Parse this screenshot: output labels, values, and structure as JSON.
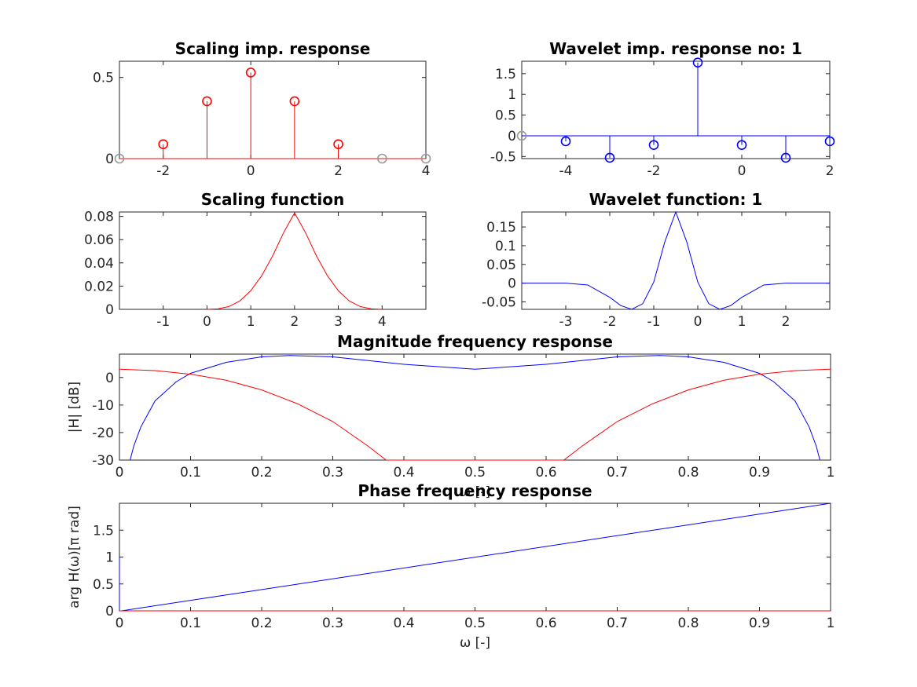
{
  "chart_data": [
    {
      "type": "stem",
      "title": "Scaling imp. response",
      "xlim": [
        -3,
        4
      ],
      "ylim": [
        0,
        0.6
      ],
      "xticks": [
        "-2",
        "0",
        "2",
        "4"
      ],
      "yticks": [
        "0",
        "0.5"
      ],
      "series": [
        {
          "color": "#ff0000",
          "x": [
            -2,
            -1,
            0,
            1,
            2
          ],
          "values": [
            0.0884,
            0.3536,
            0.5303,
            0.3536,
            0.0884
          ]
        },
        {
          "color": "#999999",
          "x": [
            -3,
            3,
            4
          ],
          "values": [
            0,
            0,
            0
          ]
        }
      ]
    },
    {
      "type": "stem",
      "title": "Wavelet imp. response no: 1",
      "xlim": [
        -5,
        2
      ],
      "ylim": [
        -0.55,
        1.8
      ],
      "xticks": [
        "-4",
        "-2",
        "0",
        "2"
      ],
      "yticks": [
        "-0.5",
        "0",
        "0.5",
        "1",
        "1.5"
      ],
      "series": [
        {
          "color": "#0000ff",
          "x": [
            -4,
            -3,
            -2,
            -1,
            0,
            1,
            2
          ],
          "values": [
            -0.1326,
            -0.5303,
            -0.221,
            1.7678,
            -0.221,
            -0.5303,
            -0.1326
          ]
        },
        {
          "color": "#999999",
          "x": [
            -5
          ],
          "values": [
            0
          ]
        }
      ]
    },
    {
      "type": "line",
      "title": "Scaling function",
      "xlim": [
        -2,
        5
      ],
      "ylim": [
        0,
        0.0838
      ],
      "xticks": [
        "-1",
        "0",
        "1",
        "2",
        "3",
        "4"
      ],
      "yticks": [
        "0",
        "0.02",
        "0.04",
        "0.06",
        "0.08"
      ],
      "series": [
        {
          "color": "#ff0000",
          "x": [
            0,
            0.25,
            0.5,
            0.75,
            1,
            1.25,
            1.5,
            1.75,
            2,
            2.25,
            2.5,
            2.75,
            3,
            3.25,
            3.5,
            3.75,
            4
          ],
          "values": [
            0,
            0.0004,
            0.0024,
            0.0072,
            0.016,
            0.029,
            0.046,
            0.066,
            0.083,
            0.066,
            0.046,
            0.029,
            0.016,
            0.0072,
            0.0024,
            0.0004,
            0
          ]
        }
      ]
    },
    {
      "type": "line",
      "title": "Wavelet function: 1",
      "xlim": [
        -4,
        3
      ],
      "ylim": [
        -0.07,
        0.19
      ],
      "xticks": [
        "-3",
        "-2",
        "-1",
        "0",
        "1",
        "2"
      ],
      "yticks": [
        "-0.05",
        "0",
        "0.05",
        "0.1",
        "0.15"
      ],
      "series": [
        {
          "color": "#0000ff",
          "x": [
            -4,
            -3,
            -2.5,
            -2,
            -1.75,
            -1.5,
            -1.25,
            -1,
            -0.75,
            -0.5,
            -0.25,
            0,
            0.25,
            0.5,
            0.75,
            1,
            1.5,
            2,
            3
          ],
          "values": [
            0,
            0,
            -0.005,
            -0.038,
            -0.06,
            -0.07,
            -0.055,
            0.003,
            0.11,
            0.19,
            0.11,
            0.003,
            -0.055,
            -0.07,
            -0.06,
            -0.038,
            -0.005,
            0,
            0
          ]
        }
      ]
    },
    {
      "type": "line",
      "title": "Magnitude frequency response",
      "xlabel": "ω [-]",
      "ylabel": "|H| [dB]",
      "xlim": [
        0,
        1
      ],
      "ylim": [
        -30,
        8.5
      ],
      "xticks": [
        "0",
        "0.1",
        "0.2",
        "0.3",
        "0.4",
        "0.5",
        "0.6",
        "0.7",
        "0.8",
        "0.9",
        "1"
      ],
      "yticks": [
        "-30",
        "-20",
        "-10",
        "0"
      ],
      "series": [
        {
          "color": "#0000ff",
          "x": [
            0.015,
            0.02,
            0.03,
            0.05,
            0.08,
            0.1,
            0.15,
            0.2,
            0.24,
            0.3,
            0.4,
            0.5,
            0.6,
            0.7,
            0.76,
            0.8,
            0.85,
            0.9,
            0.92,
            0.95,
            0.97,
            0.98,
            0.985
          ],
          "values": [
            -30,
            -25,
            -18,
            -8.5,
            -1.5,
            1.5,
            5.5,
            7.5,
            8,
            7.5,
            4.8,
            3,
            4.8,
            7.5,
            8,
            7.5,
            5.5,
            1.5,
            -1.5,
            -8.5,
            -18,
            -25,
            -30
          ]
        },
        {
          "color": "#ff0000",
          "x": [
            0,
            0.05,
            0.1,
            0.15,
            0.2,
            0.25,
            0.3,
            0.35,
            0.375,
            0.625,
            0.65,
            0.7,
            0.75,
            0.8,
            0.85,
            0.9,
            0.95,
            1
          ],
          "values": [
            3,
            2.5,
            1.2,
            -1,
            -4.5,
            -9.5,
            -16,
            -25,
            -30,
            -30,
            -25,
            -16,
            -9.5,
            -4.5,
            -1,
            1.2,
            2.5,
            3
          ]
        }
      ]
    },
    {
      "type": "line",
      "title": "Phase frequency response",
      "xlabel": "ω [-]",
      "ylabel": "arg H(ω)[π rad]",
      "xlim": [
        0,
        1
      ],
      "ylim": [
        0,
        2
      ],
      "xticks": [
        "0",
        "0.1",
        "0.2",
        "0.3",
        "0.4",
        "0.5",
        "0.6",
        "0.7",
        "0.8",
        "0.9",
        "1"
      ],
      "yticks": [
        "0",
        "0.5",
        "1",
        "1.5"
      ],
      "series": [
        {
          "color": "#0000ff",
          "x": [
            0,
            0,
            0.003,
            1
          ],
          "values": [
            1,
            0,
            0,
            2
          ]
        },
        {
          "color": "#ff0000",
          "x": [
            0,
            1
          ],
          "values": [
            0,
            0
          ]
        }
      ]
    }
  ]
}
